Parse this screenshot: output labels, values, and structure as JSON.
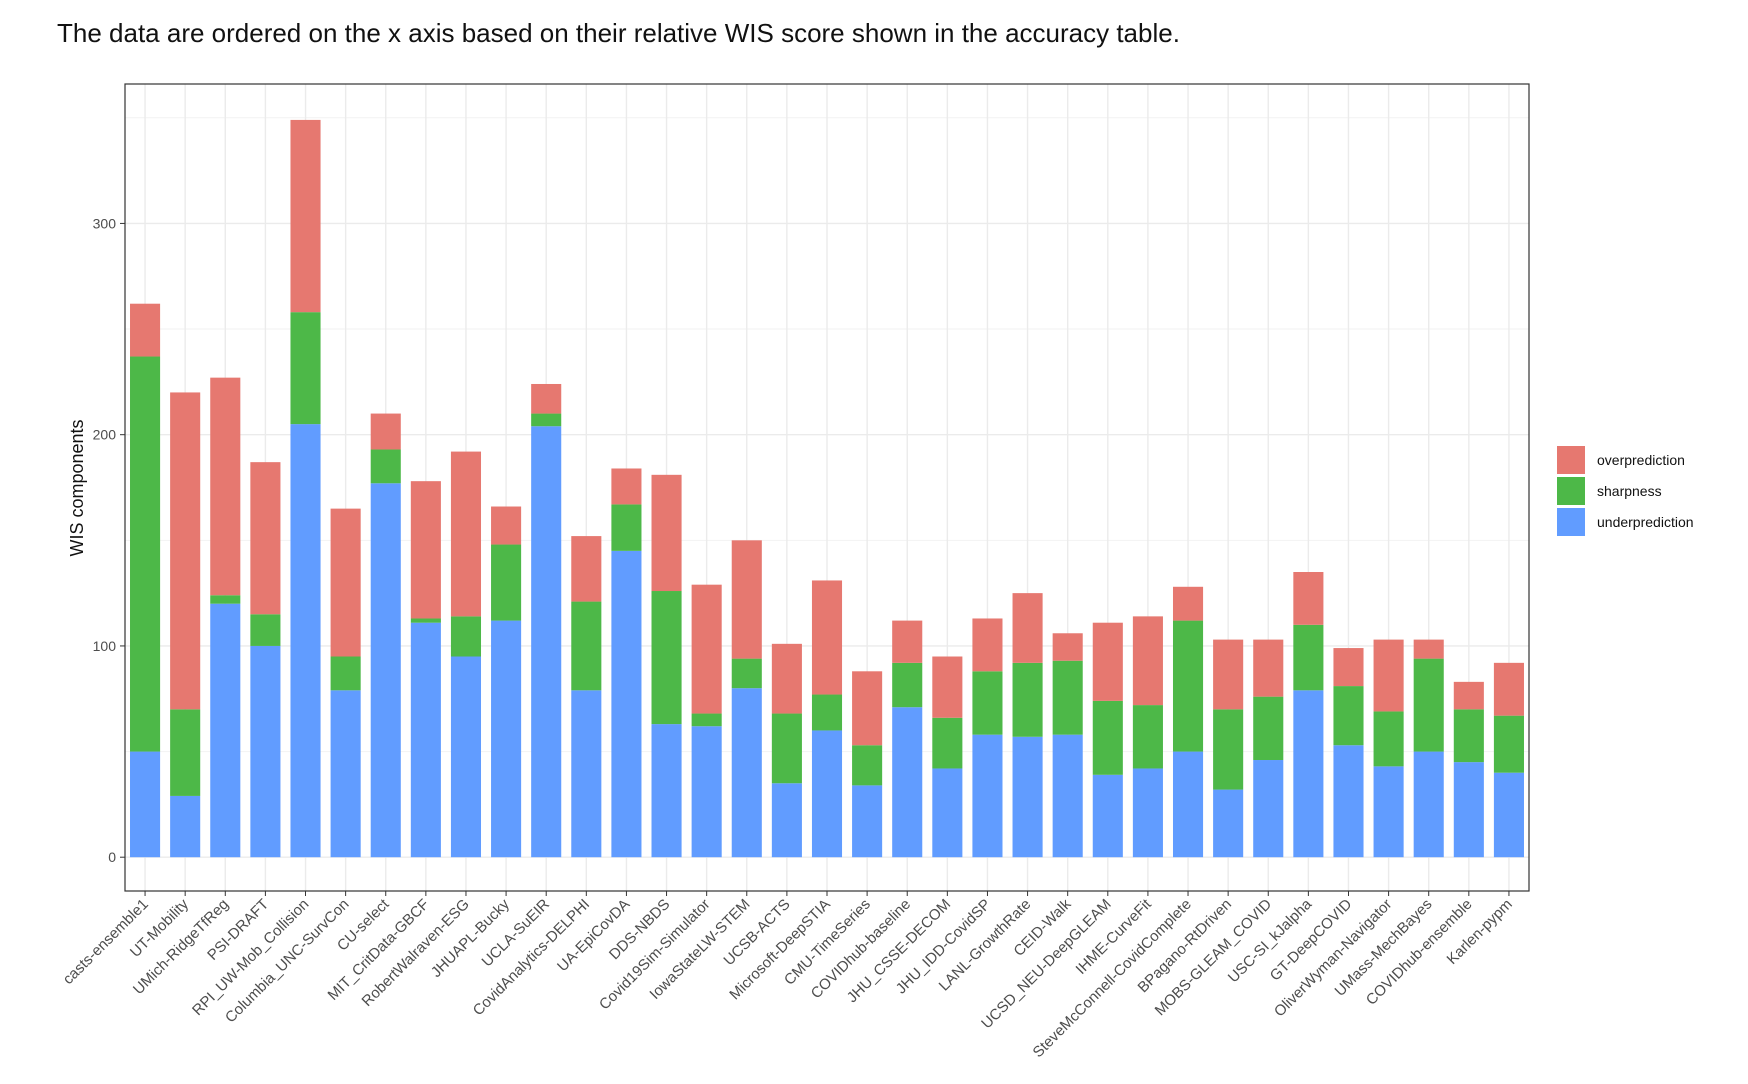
{
  "caption": "The data are ordered on the x axis based on their relative WIS score shown in the accuracy table.",
  "chart_data": {
    "type": "bar",
    "stacked": true,
    "title": "",
    "xlabel": "",
    "ylabel": "WIS components",
    "ylim": [
      -16,
      366
    ],
    "yticks": [
      0,
      100,
      200,
      300
    ],
    "grid": true,
    "legend_position": "right",
    "categories": [
      "casts-ensemble1",
      "UT-Mobility",
      "UMich-RidgeTfReg",
      "PSI-DRAFT",
      "RPI_UW-Mob_Collision",
      "Columbia_UNC-SurvCon",
      "CU-select",
      "MIT_CritData-GBCF",
      "RobertWalraven-ESG",
      "JHUAPL-Bucky",
      "UCLA-SuEIR",
      "CovidAnalytics-DELPHI",
      "UA-EpiCovDA",
      "DDS-NBDS",
      "Covid19Sim-Simulator",
      "IowaStateLW-STEM",
      "UCSB-ACTS",
      "Microsoft-DeepSTIA",
      "CMU-TimeSeries",
      "COVIDhub-baseline",
      "JHU_CSSE-DECOM",
      "JHU_IDD-CovidSP",
      "LANL-GrowthRate",
      "CEID-Walk",
      "UCSD_NEU-DeepGLEAM",
      "IHME-CurveFit",
      "SteveMcConnell-CovidComplete",
      "BPagano-RtDriven",
      "MOBS-GLEAM_COVID",
      "USC-SI_kJalpha",
      "GT-DeepCOVID",
      "OliverWyman-Navigator",
      "UMass-MechBayes",
      "COVIDhub-ensemble",
      "Karlen-pypm"
    ],
    "series": [
      {
        "name": "underprediction",
        "color": "#619CFF",
        "values": [
          50,
          29,
          120,
          100,
          205,
          79,
          177,
          111,
          95,
          112,
          204,
          79,
          145,
          63,
          62,
          80,
          35,
          60,
          34,
          71,
          42,
          58,
          57,
          58,
          39,
          42,
          50,
          32,
          46,
          79,
          53,
          43,
          50,
          45,
          40
        ]
      },
      {
        "name": "sharpness",
        "color": "#4DB848",
        "values": [
          187,
          41,
          4,
          15,
          53,
          16,
          16,
          2,
          19,
          36,
          6,
          42,
          22,
          63,
          6,
          14,
          33,
          17,
          19,
          21,
          24,
          30,
          35,
          35,
          35,
          30,
          62,
          38,
          30,
          31,
          28,
          26,
          44,
          25,
          27
        ]
      },
      {
        "name": "overprediction",
        "color": "#E67870",
        "values": [
          25,
          150,
          103,
          72,
          91,
          70,
          17,
          65,
          78,
          18,
          14,
          31,
          17,
          55,
          61,
          56,
          33,
          54,
          35,
          20,
          29,
          25,
          33,
          13,
          37,
          42,
          16,
          33,
          27,
          25,
          18,
          34,
          9,
          13,
          25
        ]
      }
    ],
    "legend": {
      "order": [
        "overprediction",
        "sharpness",
        "underprediction"
      ]
    }
  }
}
